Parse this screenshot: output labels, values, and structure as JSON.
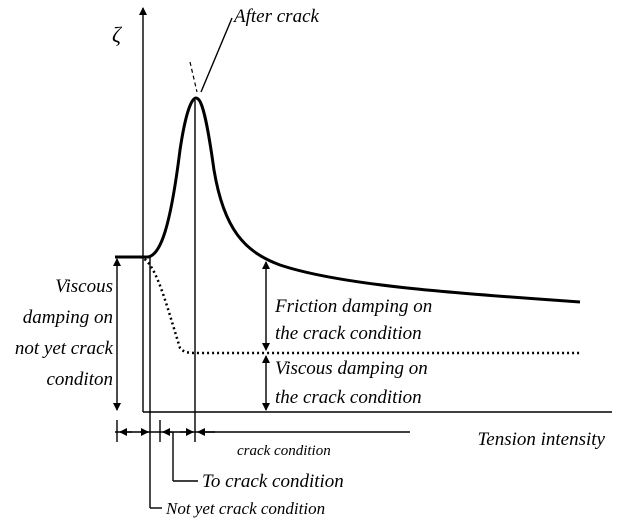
{
  "axis": {
    "y_label": "ζ",
    "x_label": "Tension intensity"
  },
  "annotations": {
    "after_crack": "After crack",
    "left": [
      "Viscous",
      "damping on",
      "not yet crack",
      "conditon"
    ],
    "friction": [
      "Friction damping on",
      "the crack condition"
    ],
    "viscous_crack": [
      "Viscous damping on",
      "the crack condition"
    ],
    "crack_condition": "crack condition",
    "to_crack": "To crack condition",
    "not_yet": "Not yet crack condition"
  }
}
